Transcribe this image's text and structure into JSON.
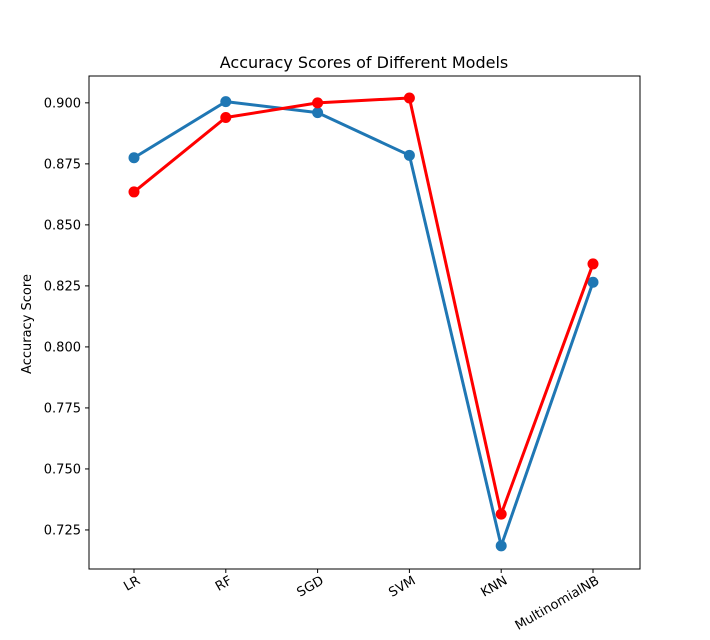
{
  "chart_data": {
    "type": "line",
    "title": "Accuracy Scores of Different Models",
    "xlabel": "",
    "ylabel": "Accuracy Score",
    "categories": [
      "LR",
      "RF",
      "SGD",
      "SVM",
      "KNN",
      "MultinomialNB"
    ],
    "ylim": [
      0.709,
      0.911
    ],
    "yticks": [
      0.725,
      0.75,
      0.775,
      0.8,
      0.825,
      0.85,
      0.875,
      0.9
    ],
    "ytick_labels": [
      "0.725",
      "0.750",
      "0.775",
      "0.800",
      "0.825",
      "0.850",
      "0.875",
      "0.900"
    ],
    "grid": false,
    "legend": "none",
    "series": [
      {
        "color": "#1f77b4",
        "values": [
          0.8775,
          0.9005,
          0.896,
          0.8785,
          0.7185,
          0.8265
        ]
      },
      {
        "color": "#ff0000",
        "values": [
          0.8635,
          0.894,
          0.9,
          0.902,
          0.7315,
          0.834
        ]
      }
    ]
  }
}
